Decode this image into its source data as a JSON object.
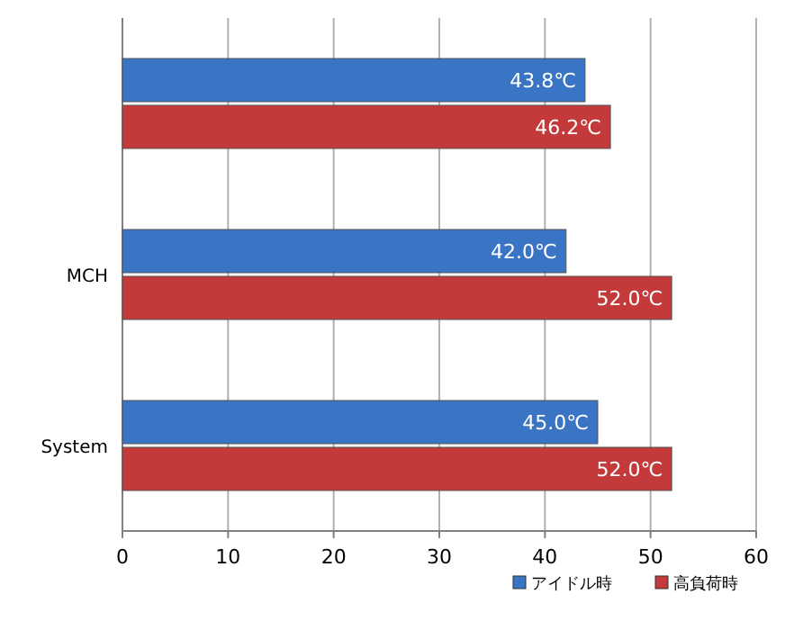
{
  "chart_data": {
    "type": "bar",
    "orientation": "horizontal",
    "categories": [
      null,
      "MCH",
      "System"
    ],
    "series": [
      {
        "name": "アイドル時",
        "color": "#3a74c4",
        "values": [
          43.8,
          42.0,
          45.0
        ],
        "value_labels": [
          "43.8℃",
          "42.0℃",
          "45.0℃"
        ]
      },
      {
        "name": "高負荷時",
        "color": "#c43a3a",
        "values": [
          46.2,
          52.0,
          52.0
        ],
        "value_labels": [
          "46.2℃",
          "52.0℃",
          "52.0℃"
        ]
      }
    ],
    "xlim": [
      0,
      60
    ],
    "xticks": [
      0,
      10,
      20,
      30,
      40,
      50,
      60
    ],
    "grid": "x",
    "legend": "bottom right"
  }
}
